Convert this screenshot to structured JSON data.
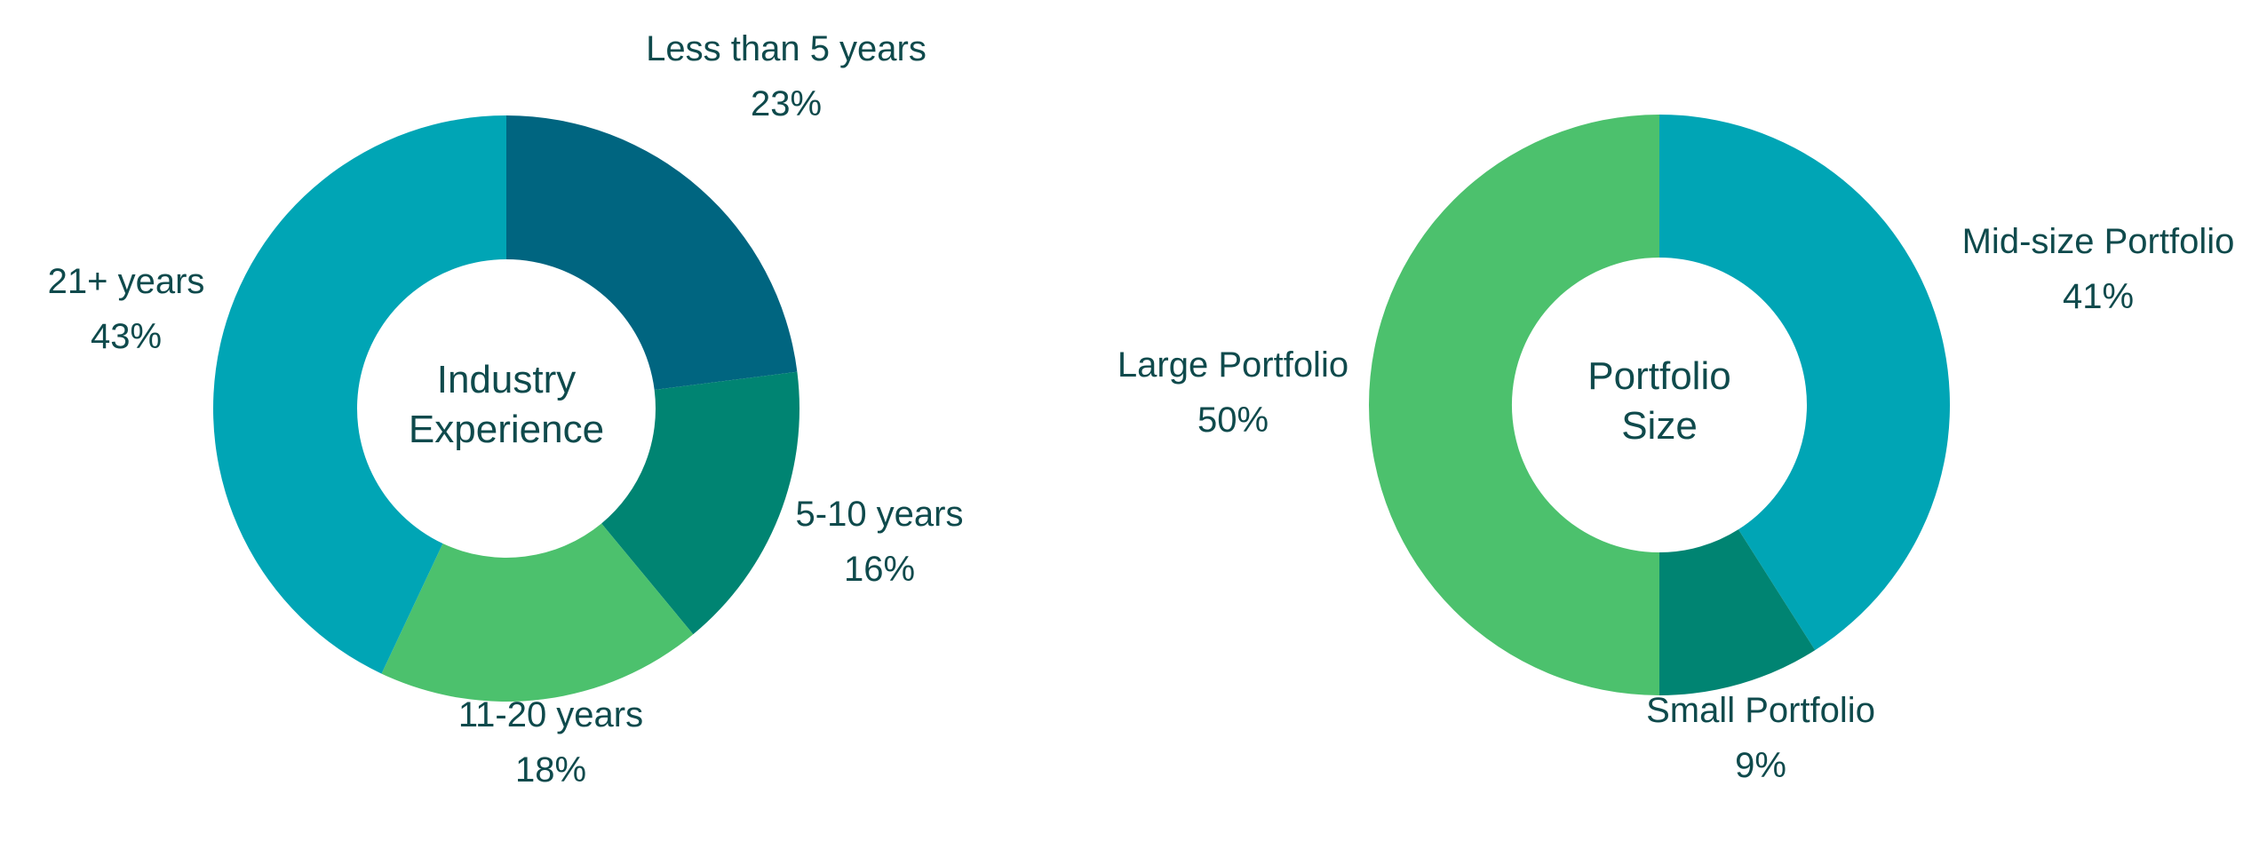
{
  "chart_data": [
    {
      "type": "pie",
      "variant": "donut",
      "center_label": [
        "Industry",
        "Experience"
      ],
      "slices": [
        {
          "label": "Less than 5 years",
          "value": 23,
          "value_label": "23%",
          "color": "#006580"
        },
        {
          "label": "5-10 years",
          "value": 16,
          "value_label": "16%",
          "color": "#008472"
        },
        {
          "label": "11-20 years",
          "value": 18,
          "value_label": "18%",
          "color": "#4cc16d"
        },
        {
          "label": "21+ years",
          "value": 43,
          "value_label": "43%",
          "color": "#00a5b5"
        }
      ]
    },
    {
      "type": "pie",
      "variant": "donut",
      "center_label": [
        "Portfolio",
        "Size"
      ],
      "slices": [
        {
          "label": "Mid-size Portfolio",
          "value": 41,
          "value_label": "41%",
          "color": "#00a5b5"
        },
        {
          "label": "Small Portfolio",
          "value": 9,
          "value_label": "9%",
          "color": "#008472"
        },
        {
          "label": "Large Portfolio",
          "value": 50,
          "value_label": "50%",
          "color": "#4cc16d"
        }
      ]
    }
  ]
}
